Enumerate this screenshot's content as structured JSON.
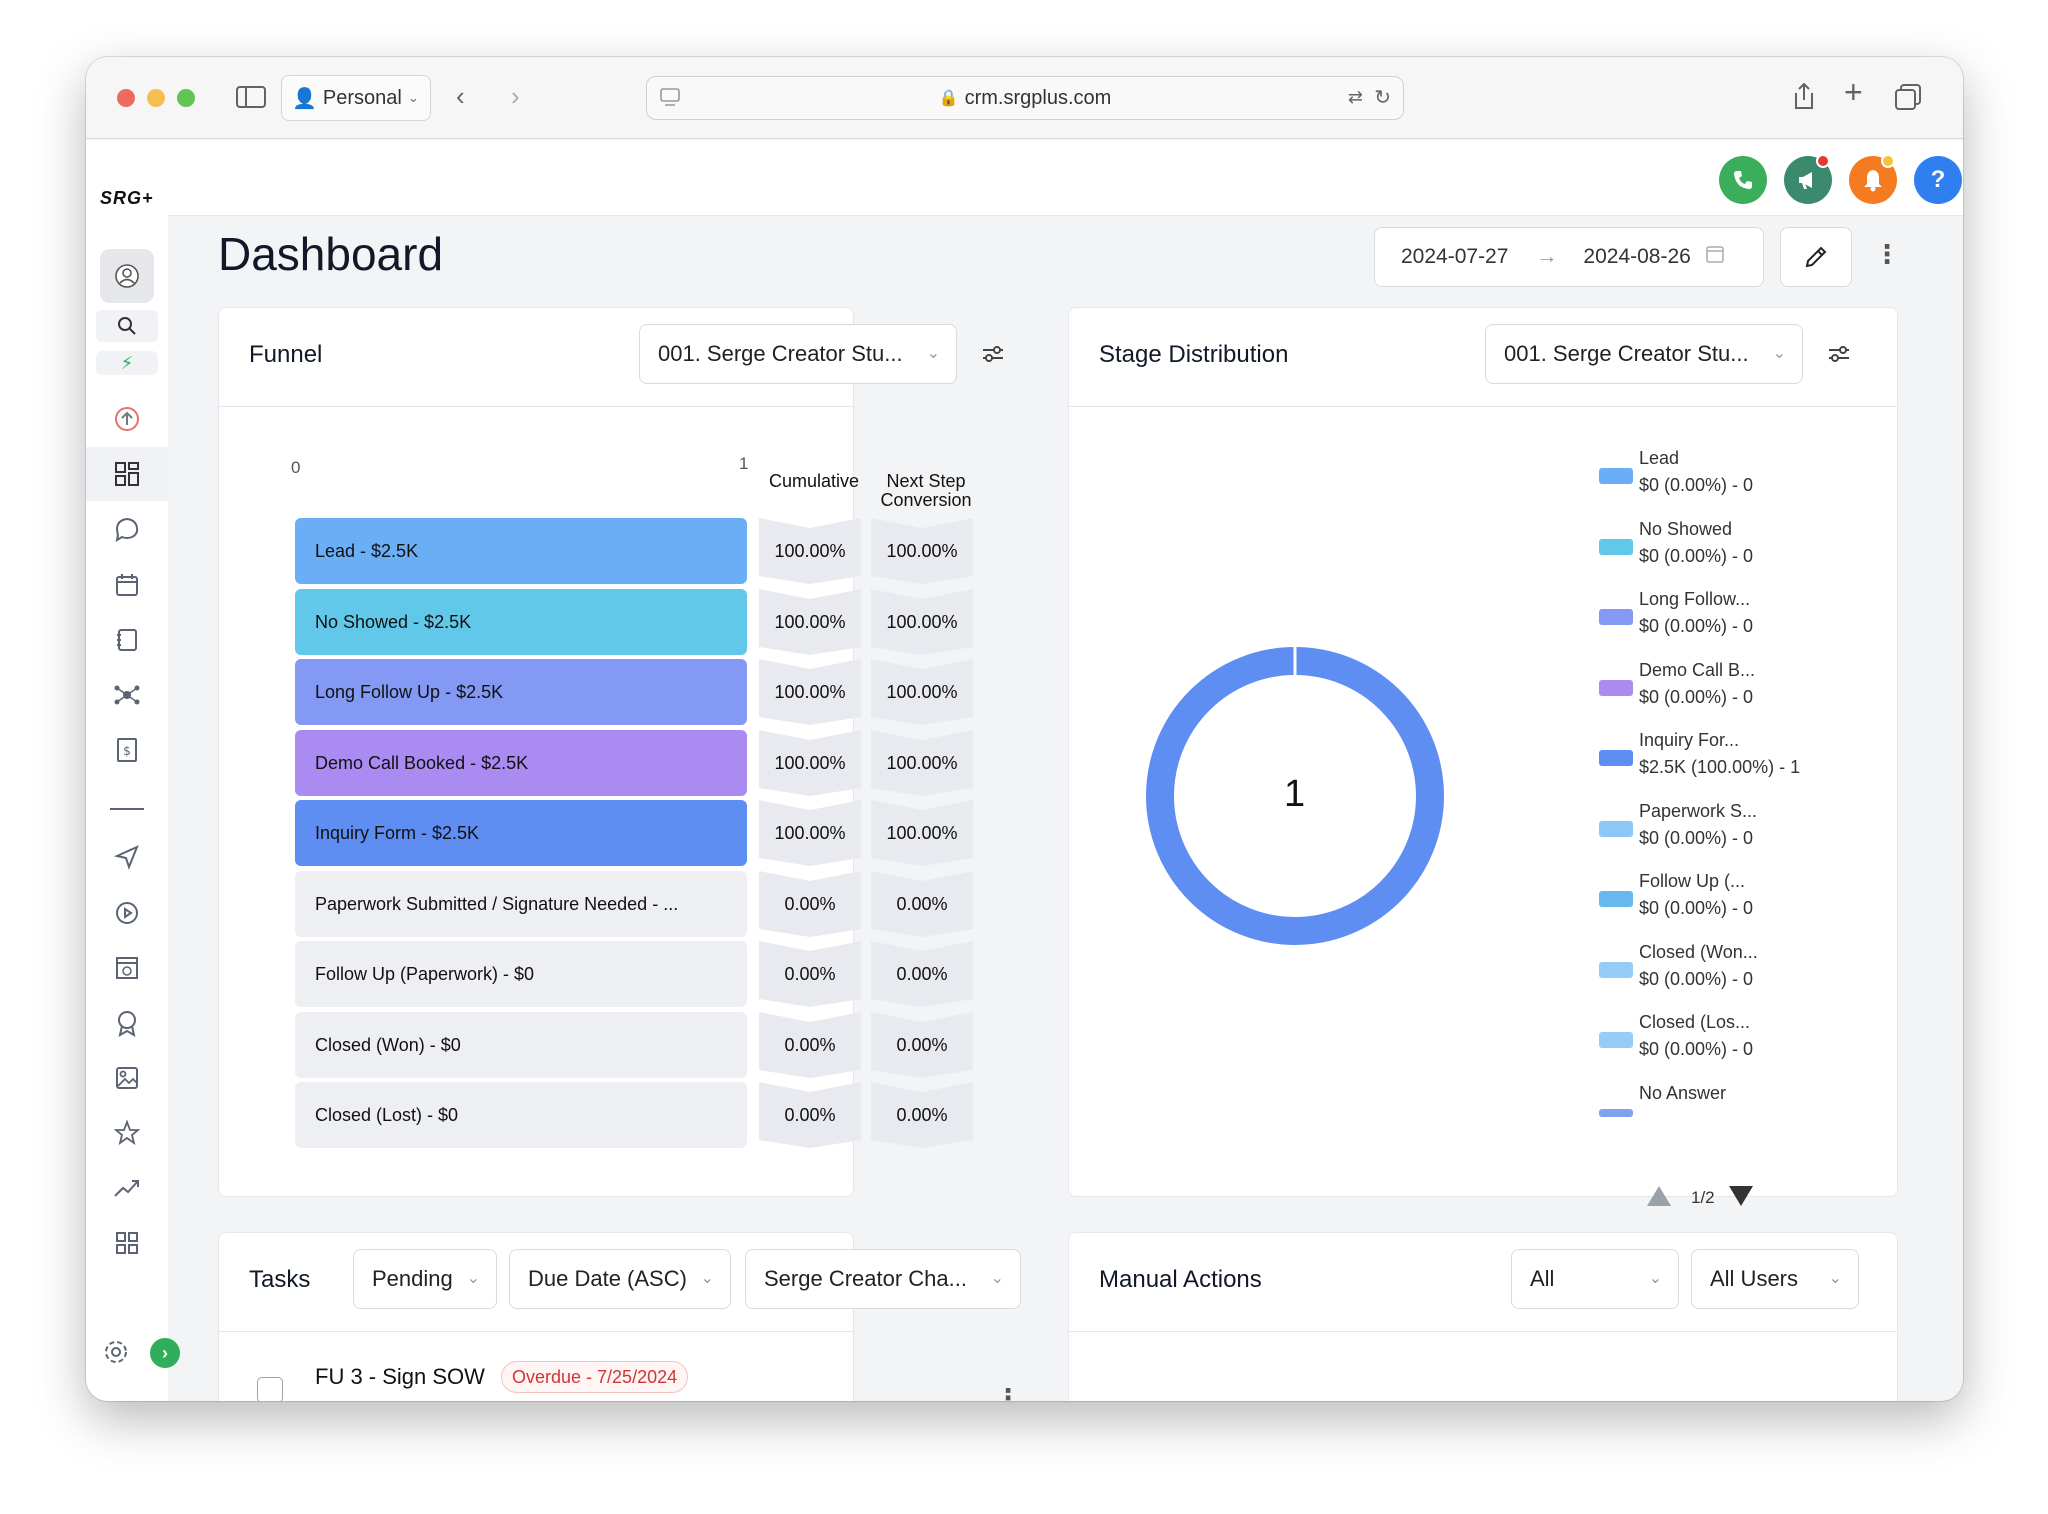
{
  "browser": {
    "profile": "Personal",
    "url": "crm.srgplus.com"
  },
  "app": {
    "logo": "SRG+",
    "header_icons": [
      "phone-icon",
      "megaphone-icon",
      "bell-icon",
      "help-icon",
      "avatar"
    ],
    "help_glyph": "?"
  },
  "sidebar": {
    "icons": [
      "user-icon",
      "search-icon",
      "bolt-icon",
      "launch-icon",
      "dashboard-icon",
      "chat-icon",
      "calendar-icon",
      "contacts-icon",
      "network-icon",
      "invoice-icon",
      "divider",
      "send-icon",
      "play-icon",
      "website-icon",
      "award-icon",
      "image-icon",
      "star-icon",
      "trend-icon",
      "apps-icon",
      "settings-icon"
    ]
  },
  "dashboard": {
    "title": "Dashboard",
    "date_start": "2024-07-27",
    "date_arrow": "→",
    "date_end": "2024-08-26"
  },
  "funnel": {
    "title": "Funnel",
    "pipeline": "001. Serge Creator Stu...",
    "axis_min": "0",
    "axis_max": "1",
    "col_cumulative": "Cumulative",
    "col_next_step_1": "Next Step",
    "col_next_step_2": "Conversion",
    "rows": [
      {
        "label": "Lead - $2.5K",
        "cumulative": "100.00%",
        "next": "100.00%",
        "color": "#6aaef6"
      },
      {
        "label": "No Showed - $2.5K",
        "cumulative": "100.00%",
        "next": "100.00%",
        "color": "#62c8ea"
      },
      {
        "label": "Long Follow Up - $2.5K",
        "cumulative": "100.00%",
        "next": "100.00%",
        "color": "#8399f3"
      },
      {
        "label": "Demo Call Booked - $2.5K",
        "cumulative": "100.00%",
        "next": "100.00%",
        "color": "#a98bf2"
      },
      {
        "label": "Inquiry Form - $2.5K",
        "cumulative": "100.00%",
        "next": "100.00%",
        "color": "#5f8ef3"
      },
      {
        "label": "Paperwork Submitted / Signature Needed - ...",
        "cumulative": "0.00%",
        "next": "0.00%",
        "color": "#eeeff2"
      },
      {
        "label": "Follow Up (Paperwork) - $0",
        "cumulative": "0.00%",
        "next": "0.00%",
        "color": "#eeeff2"
      },
      {
        "label": "Closed (Won) - $0",
        "cumulative": "0.00%",
        "next": "0.00%",
        "color": "#eeeff2"
      },
      {
        "label": "Closed (Lost) - $0",
        "cumulative": "0.00%",
        "next": "0.00%",
        "color": "#eeeff2"
      }
    ]
  },
  "stage_distribution": {
    "title": "Stage Distribution",
    "pipeline": "001. Serge Creator Stu...",
    "donut_center": "1",
    "donut_color": "#5f8ef3",
    "legend": [
      {
        "name": "Lead",
        "value": "$0 (0.00%) - 0",
        "color": "#6aaef6"
      },
      {
        "name": "No Showed",
        "value": "$0 (0.00%) - 0",
        "color": "#62c8ea"
      },
      {
        "name": "Long Follow...",
        "value": "$0 (0.00%) - 0",
        "color": "#8399f3"
      },
      {
        "name": "Demo Call B...",
        "value": "$0 (0.00%) - 0",
        "color": "#a98bf2"
      },
      {
        "name": "Inquiry For...",
        "value": "$2.5K (100.00%) - 1",
        "color": "#5f8ef3"
      },
      {
        "name": "Paperwork S...",
        "value": "$0 (0.00%) - 0",
        "color": "#8ec6f7"
      },
      {
        "name": "Follow Up (...",
        "value": "$0 (0.00%) - 0",
        "color": "#65b9ee"
      },
      {
        "name": "Closed (Won...",
        "value": "$0 (0.00%) - 0",
        "color": "#96cdf7"
      },
      {
        "name": "Closed (Los...",
        "value": "$0 (0.00%) - 0",
        "color": "#96cdf7"
      },
      {
        "name": "No Answer",
        "value": "",
        "color": "#7fa2f1"
      }
    ],
    "page": "1/2"
  },
  "tasks": {
    "title": "Tasks",
    "status_filter": "Pending",
    "sort": "Due Date (ASC)",
    "user_filter": "Serge Creator Cha...",
    "items": [
      {
        "title": "FU 3 - Sign SOW",
        "badge": "Overdue - 7/25/2024"
      }
    ]
  },
  "manual_actions": {
    "title": "Manual Actions",
    "type_filter": "All",
    "user_filter": "All Users"
  }
}
